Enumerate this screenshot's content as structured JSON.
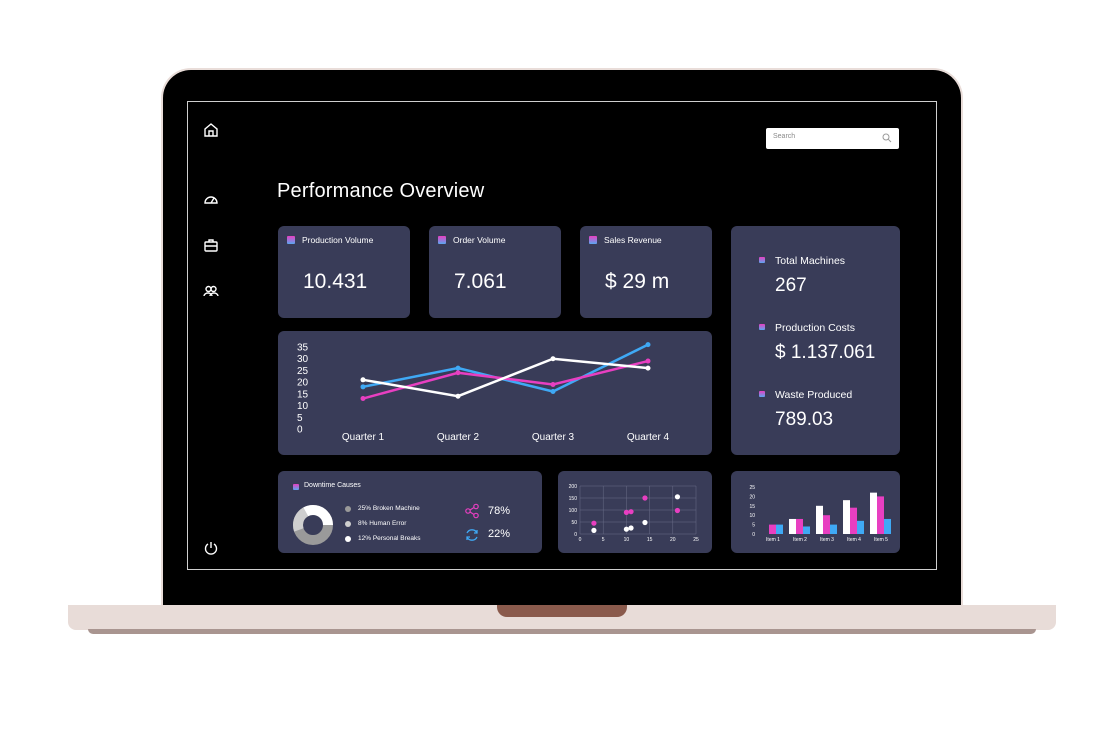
{
  "header": {
    "title": "Performance Overview"
  },
  "search": {
    "placeholder": "Search"
  },
  "sidebar": {
    "items": [
      "home-icon",
      "dashboard-icon",
      "briefcase-icon",
      "users-icon",
      "power-icon"
    ]
  },
  "kpis": [
    {
      "label": "Production Volume",
      "value": "10.431"
    },
    {
      "label": "Order Volume",
      "value": "7.061"
    },
    {
      "label": "Sales Revenue",
      "value": "$ 29 m"
    }
  ],
  "side_stats": [
    {
      "label": "Total Machines",
      "value": "267"
    },
    {
      "label": "Production Costs",
      "value": "$ 1.137.061"
    },
    {
      "label": "Waste Produced",
      "value": "789.03"
    }
  ],
  "downtime": {
    "title": "Downtime Causes",
    "items": [
      {
        "label": "25% Broken Machine",
        "color": "#9a9a9a"
      },
      {
        "label": "8% Human Error",
        "color": "#cfcfcf"
      },
      {
        "label": "12% Personal Breaks",
        "color": "#ffffff"
      }
    ],
    "stats": [
      {
        "icon": "share-icon",
        "value": "78%"
      },
      {
        "icon": "refresh-icon",
        "value": "22%"
      }
    ]
  },
  "colors": {
    "pink": "#e83fc1",
    "blue": "#3fa9f5",
    "white": "#ffffff",
    "card": "#393c58"
  },
  "chart_data": [
    {
      "type": "line",
      "categories": [
        "Quarter 1",
        "Quarter 2",
        "Quarter 3",
        "Quarter 4"
      ],
      "yticks": [
        "35",
        "30",
        "25",
        "20",
        "15",
        "10",
        "5",
        "0"
      ],
      "ylim": [
        0,
        35
      ],
      "series": [
        {
          "color": "#3fa9f5",
          "values": [
            18,
            26,
            16,
            36
          ]
        },
        {
          "color": "#e83fc1",
          "values": [
            13,
            24,
            19,
            29
          ]
        },
        {
          "color": "#ffffff",
          "values": [
            21,
            14,
            30,
            26
          ]
        }
      ]
    },
    {
      "type": "scatter",
      "xticks": [
        "0",
        "5",
        "10",
        "15",
        "20",
        "25"
      ],
      "yticks": [
        "200",
        "150",
        "100",
        "50",
        "0"
      ],
      "xlim": [
        0,
        25
      ],
      "ylim": [
        0,
        200
      ],
      "series": [
        {
          "color": "#e83fc1",
          "points": [
            [
              3,
              45
            ],
            [
              10,
              90
            ],
            [
              11,
              93
            ],
            [
              14,
              150
            ],
            [
              21,
              98
            ]
          ]
        },
        {
          "color": "#ffffff",
          "points": [
            [
              3,
              15
            ],
            [
              10,
              20
            ],
            [
              11,
              25
            ],
            [
              14,
              48
            ],
            [
              21,
              155
            ]
          ]
        }
      ]
    },
    {
      "type": "bar",
      "categories": [
        "Item 1",
        "Item 2",
        "Item 3",
        "Item 4",
        "Item 5"
      ],
      "yticks": [
        "25",
        "20",
        "15",
        "10",
        "5",
        "0"
      ],
      "ylim": [
        0,
        25
      ],
      "series": [
        {
          "color": "#e83fc1",
          "values": [
            5,
            8,
            10,
            14,
            20
          ]
        },
        {
          "color": "#3fa9f5",
          "values": [
            5,
            4,
            5,
            7,
            8
          ]
        },
        {
          "color": "#ffffff",
          "values": [
            0,
            8,
            15,
            18,
            22
          ]
        }
      ]
    }
  ]
}
